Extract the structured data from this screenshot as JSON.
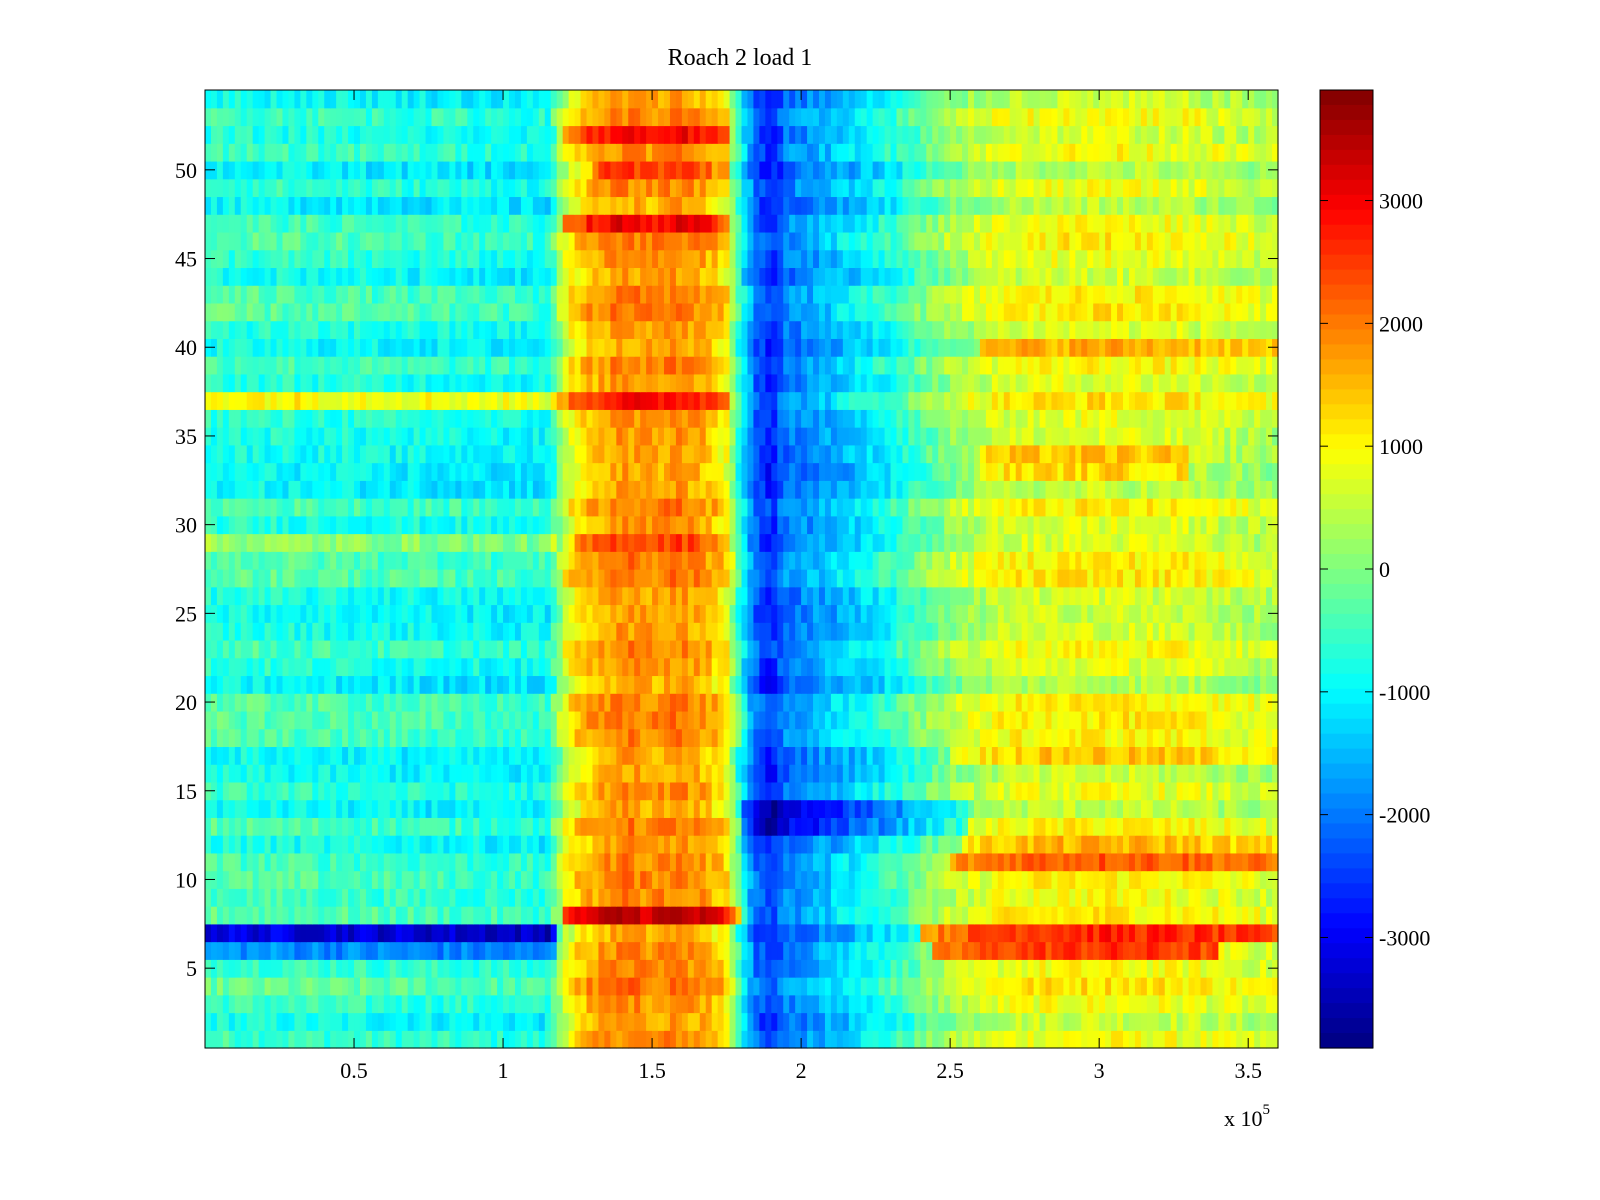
{
  "chart_data": {
    "type": "heatmap",
    "title": "Roach 2 load 1",
    "xlabel": "",
    "ylabel": "",
    "x_exponent_label": "x 10",
    "x_exponent_power": "5",
    "x_range": [
      0,
      360000
    ],
    "y_range": [
      0.5,
      54.5
    ],
    "x_ticks": [
      50000,
      100000,
      150000,
      200000,
      250000,
      300000,
      350000
    ],
    "x_tick_labels": [
      "0.5",
      "1",
      "1.5",
      "2",
      "2.5",
      "3",
      "3.5"
    ],
    "y_ticks": [
      5,
      10,
      15,
      20,
      25,
      30,
      35,
      40,
      45,
      50
    ],
    "y_tick_labels": [
      "5",
      "10",
      "15",
      "20",
      "25",
      "30",
      "35",
      "40",
      "45",
      "50"
    ],
    "color_range": [
      -3900,
      3900
    ],
    "colorbar_ticks": [
      3000,
      2000,
      1000,
      0,
      -1000,
      -2000,
      -3000
    ],
    "colorbar_tick_labels": [
      "3000",
      "2000",
      "1000",
      "0",
      "-1000",
      "-2000",
      "-3000"
    ],
    "colormap": "jet",
    "rows": 54,
    "column_profile": {
      "x": [
        0,
        40000,
        80000,
        115000,
        122000,
        130000,
        140000,
        150000,
        158000,
        168000,
        175000,
        180000,
        185000,
        190000,
        195000,
        205000,
        230000,
        250000,
        270000,
        300000,
        330000,
        360000
      ],
      "z": [
        -600,
        -700,
        -800,
        -900,
        900,
        1500,
        1900,
        1700,
        1900,
        1600,
        1000,
        -900,
        -2200,
        -2700,
        -2000,
        -1700,
        -800,
        200,
        700,
        800,
        700,
        400
      ]
    },
    "row_modifiers": [
      {
        "row": 7,
        "x_from": 0,
        "x_to": 118000,
        "delta": -2200
      },
      {
        "row": 6,
        "x_from": 0,
        "x_to": 118000,
        "delta": -1300
      },
      {
        "row": 7,
        "x_from": 240000,
        "x_to": 360000,
        "delta": 2200
      },
      {
        "row": 6,
        "x_from": 245000,
        "x_to": 340000,
        "delta": 1600
      },
      {
        "row": 11,
        "x_from": 250000,
        "x_to": 360000,
        "delta": 1300
      },
      {
        "row": 12,
        "x_from": 255000,
        "x_to": 360000,
        "delta": 900
      },
      {
        "row": 13,
        "x_from": 180000,
        "x_to": 255000,
        "delta": -1200
      },
      {
        "row": 14,
        "x_from": 180000,
        "x_to": 255000,
        "delta": -900
      },
      {
        "row": 37,
        "x_from": 0,
        "x_to": 118000,
        "delta": 1300
      },
      {
        "row": 37,
        "x_from": 118000,
        "x_to": 175000,
        "delta": 800
      },
      {
        "row": 40,
        "x_from": 260000,
        "x_to": 360000,
        "delta": 1100
      },
      {
        "row": 29,
        "x_from": 0,
        "x_to": 118000,
        "delta": 900
      },
      {
        "row": 29,
        "x_from": 125000,
        "x_to": 175000,
        "delta": 700
      },
      {
        "row": 50,
        "x_from": 130000,
        "x_to": 175000,
        "delta": 900
      },
      {
        "row": 52,
        "x_from": 120000,
        "x_to": 175000,
        "delta": 1200
      },
      {
        "row": 47,
        "x_from": 120000,
        "x_to": 175000,
        "delta": 1100
      },
      {
        "row": 8,
        "x_from": 120000,
        "x_to": 180000,
        "delta": 1400
      },
      {
        "row": 17,
        "x_from": 250000,
        "x_to": 360000,
        "delta": 900
      },
      {
        "row": 33,
        "x_from": 260000,
        "x_to": 330000,
        "delta": 800
      },
      {
        "row": 34,
        "x_from": 260000,
        "x_to": 330000,
        "delta": 800
      }
    ]
  }
}
